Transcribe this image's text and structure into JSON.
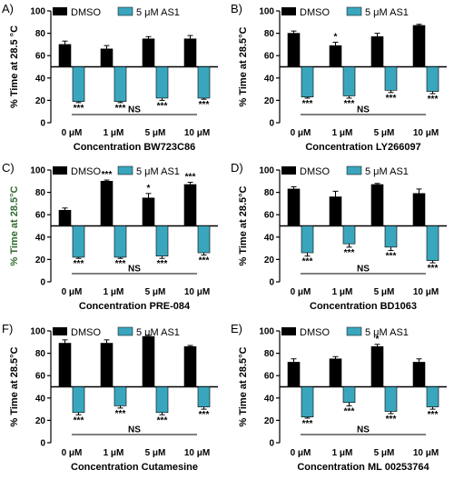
{
  "figure": {
    "colors": {
      "dmso": "#000000",
      "as1": "#3aa6bd",
      "text": "#000000",
      "ylabel_green": "#2e6b2e"
    },
    "legend": {
      "dmso": "DMSO",
      "as1": "5 μM AS1"
    }
  },
  "chart_data": [
    {
      "type": "bar",
      "panel_label": "A)",
      "title": "",
      "xlabel": "Concentration BW723C86",
      "ylabel": "% Time at 28.5 °C",
      "ylabel_color": "black",
      "ylim": [
        0,
        100
      ],
      "yticks": [
        0,
        20,
        40,
        60,
        80,
        100
      ],
      "baseline": 50,
      "categories": [
        "0 μM",
        "1 μM",
        "5 μM",
        "10 μM"
      ],
      "series": [
        {
          "name": "DMSO",
          "values": [
            70,
            66,
            75,
            75
          ],
          "errors": [
            3,
            3,
            2,
            3
          ],
          "sig": [
            "",
            "",
            "",
            ""
          ]
        },
        {
          "name": "5 μM AS1",
          "values": [
            19,
            19,
            22,
            22
          ],
          "errors": [
            1,
            1,
            2,
            1
          ],
          "sig": [
            "***",
            "***",
            "***",
            "***"
          ]
        }
      ],
      "annotation": "NS"
    },
    {
      "type": "bar",
      "panel_label": "B)",
      "title": "",
      "xlabel": "Concentration LY266097",
      "ylabel": "% Time at 28.5°C",
      "ylabel_color": "black",
      "ylim": [
        0,
        100
      ],
      "yticks": [
        0,
        20,
        40,
        60,
        80,
        100
      ],
      "baseline": 50,
      "categories": [
        "0 μM",
        "1 μM",
        "5 μM",
        "10 μM"
      ],
      "series": [
        {
          "name": "DMSO",
          "values": [
            80,
            69,
            77,
            87
          ],
          "errors": [
            2,
            3,
            3,
            1
          ],
          "sig": [
            "",
            "*",
            "",
            ""
          ]
        },
        {
          "name": "5 μM AS1",
          "values": [
            23,
            24,
            29,
            28
          ],
          "errors": [
            1,
            2,
            2,
            2
          ],
          "sig": [
            "***",
            "***",
            "***",
            "***"
          ]
        }
      ],
      "annotation": "NS"
    },
    {
      "type": "bar",
      "panel_label": "C)",
      "title": "",
      "xlabel": "Concentration PRE-084",
      "ylabel": "% Time at 28.5°C",
      "ylabel_color": "green",
      "ylim": [
        0,
        100
      ],
      "yticks": [
        0,
        20,
        40,
        60,
        80,
        100
      ],
      "baseline": 50,
      "categories": [
        "0 μM",
        "1 μM",
        "5 μM",
        "10 μM"
      ],
      "series": [
        {
          "name": "DMSO",
          "values": [
            64,
            90,
            75,
            87
          ],
          "errors": [
            2,
            1,
            4,
            2
          ],
          "sig": [
            "",
            "***",
            "*",
            "***"
          ]
        },
        {
          "name": "5 μM AS1",
          "values": [
            22,
            22,
            23,
            26
          ],
          "errors": [
            1,
            1,
            2,
            2
          ],
          "sig": [
            "***",
            "***",
            "***",
            "***"
          ]
        }
      ],
      "annotation": "NS"
    },
    {
      "type": "bar",
      "panel_label": "D)",
      "title": "",
      "xlabel": "Concentration BD1063",
      "ylabel": "% Time at 28.5°C",
      "ylabel_color": "black",
      "ylim": [
        0,
        100
      ],
      "yticks": [
        0,
        20,
        40,
        60,
        80,
        100
      ],
      "baseline": 50,
      "categories": [
        "0 μM",
        "1 μM",
        "5 μM",
        "10 μM"
      ],
      "series": [
        {
          "name": "DMSO",
          "values": [
            83,
            76,
            87,
            79
          ],
          "errors": [
            2,
            5,
            1,
            4
          ],
          "sig": [
            "",
            "",
            "",
            ""
          ]
        },
        {
          "name": "5 μM AS1",
          "values": [
            26,
            34,
            31,
            19
          ],
          "errors": [
            3,
            3,
            3,
            2
          ],
          "sig": [
            "***",
            "***",
            "***",
            "***"
          ]
        }
      ],
      "annotation": "NS"
    },
    {
      "type": "bar",
      "panel_label": "F)",
      "title": "",
      "xlabel": "Concentration Cutamesine",
      "ylabel": "% Time at 28.5°C",
      "ylabel_color": "black",
      "ylim": [
        0,
        100
      ],
      "yticks": [
        0,
        20,
        40,
        60,
        80,
        100
      ],
      "baseline": 50,
      "categories": [
        "0 μM",
        "1 μM",
        "5 μM",
        "10 μM"
      ],
      "series": [
        {
          "name": "DMSO",
          "values": [
            89,
            89,
            95,
            86
          ],
          "errors": [
            3,
            3,
            1,
            1
          ],
          "sig": [
            "",
            "",
            "",
            ""
          ]
        },
        {
          "name": "5 μM AS1",
          "values": [
            27,
            33,
            27,
            32
          ],
          "errors": [
            2,
            2,
            2,
            2
          ],
          "sig": [
            "***",
            "***",
            "***",
            "***"
          ]
        }
      ],
      "annotation": "NS"
    },
    {
      "type": "bar",
      "panel_label": "E)",
      "title": "",
      "xlabel": "Concentration ML 00253764",
      "ylabel": "% Time at 28.5°C",
      "ylabel_color": "black",
      "ylim": [
        0,
        100
      ],
      "yticks": [
        0,
        20,
        40,
        60,
        80,
        100
      ],
      "baseline": 50,
      "categories": [
        "0 μM",
        "1 μM",
        "5 μM",
        "10 μM"
      ],
      "series": [
        {
          "name": "DMSO",
          "values": [
            72,
            75,
            86,
            72
          ],
          "errors": [
            3,
            2,
            2,
            3
          ],
          "sig": [
            "",
            "",
            "*",
            ""
          ]
        },
        {
          "name": "5 μM AS1",
          "values": [
            23,
            36,
            28,
            32
          ],
          "errors": [
            1,
            3,
            2,
            2
          ],
          "sig": [
            "***",
            "***",
            "***",
            "***"
          ]
        }
      ],
      "annotation": "NS"
    }
  ]
}
